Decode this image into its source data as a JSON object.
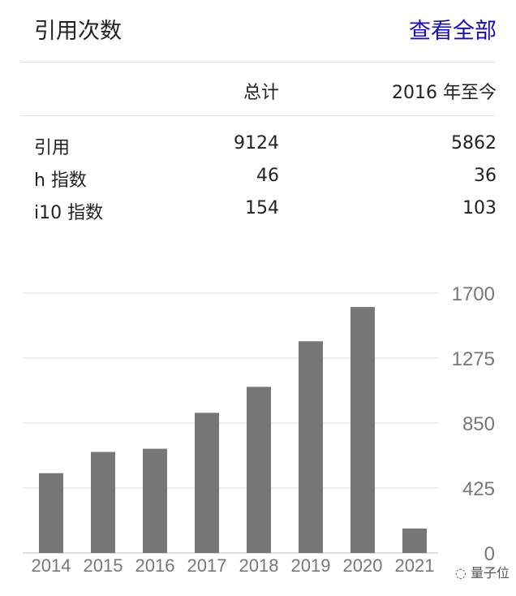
{
  "header": {
    "title": "引用次数",
    "view_all": "查看全部",
    "link_color": "#1a0dab"
  },
  "table": {
    "columns": [
      "",
      "总计",
      "2016 年至今"
    ],
    "rows": [
      {
        "label": "引用",
        "total": "9124",
        "since": "5862"
      },
      {
        "label": "h 指数",
        "total": "46",
        "since": "36"
      },
      {
        "label": "i10 指数",
        "total": "154",
        "since": "103"
      }
    ]
  },
  "chart_data": {
    "type": "bar",
    "categories": [
      "2014",
      "2015",
      "2016",
      "2017",
      "2018",
      "2019",
      "2020",
      "2021"
    ],
    "values": [
      522,
      661,
      682,
      917,
      1087,
      1385,
      1609,
      160
    ],
    "ylim": [
      0,
      1700
    ],
    "yticks": [
      0,
      425,
      850,
      1275,
      1700
    ],
    "ytick_labels": [
      "0",
      "425",
      "850",
      "1275",
      "1700"
    ],
    "yaxis_position": "right",
    "grid": true,
    "bar_color": "#777777"
  },
  "watermark": "量子位"
}
